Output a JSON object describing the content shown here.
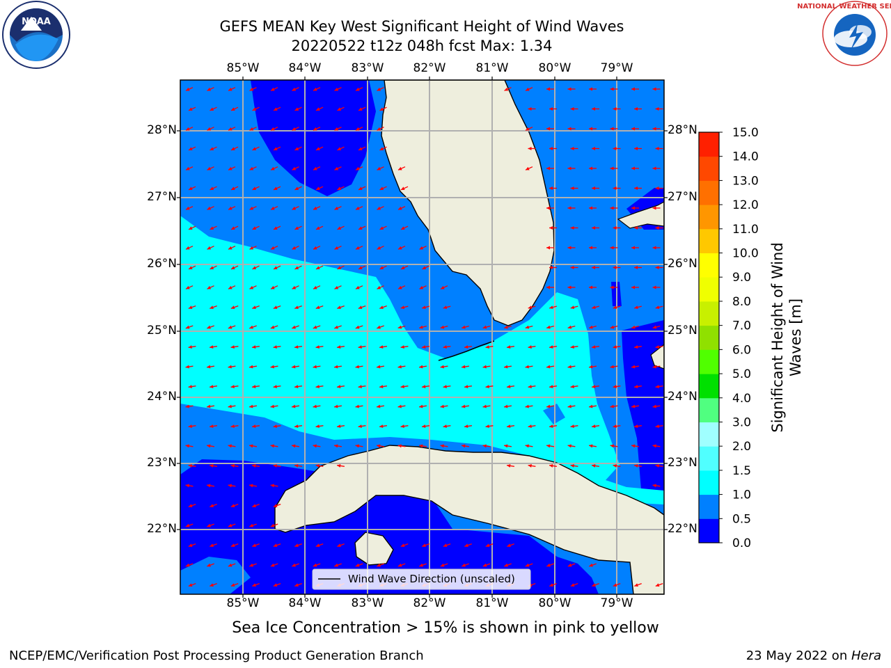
{
  "title": {
    "line1": "GEFS MEAN Key West Significant Height of Wind Waves",
    "line2": "20220522 t12z 048h fcst   Max: 1.34"
  },
  "axes": {
    "lon_labels": [
      "85°W",
      "84°W",
      "83°W",
      "82°W",
      "81°W",
      "80°W",
      "79°W"
    ],
    "lat_labels": [
      "28°N",
      "27°N",
      "26°N",
      "25°N",
      "24°N",
      "23°N",
      "22°N"
    ]
  },
  "legend": {
    "label": "Wind Wave Direction (unscaled)"
  },
  "colorbar": {
    "label_line1": "Significant Height of Wind",
    "label_line2": "Waves [m]",
    "ticks": [
      "0.0",
      "0.5",
      "1.0",
      "1.5",
      "2.0",
      "3.0",
      "4.0",
      "5.0",
      "6.0",
      "7.0",
      "8.0",
      "9.0",
      "10.0",
      "11.0",
      "12.0",
      "13.0",
      "14.0",
      "15.0"
    ],
    "colors": [
      "#0000ff",
      "#0080ff",
      "#00ffff",
      "#50ffff",
      "#a0ffff",
      "#50ff80",
      "#00e000",
      "#50ff00",
      "#90e000",
      "#c8f000",
      "#f0ff00",
      "#ffff00",
      "#ffc800",
      "#ff9600",
      "#ff7000",
      "#ff4800",
      "#ff2000"
    ]
  },
  "notes": {
    "sea_ice": "Sea Ice Concentration > 15% is shown in pink to yellow"
  },
  "footer": {
    "left": "NCEP/EMC/Verification Post Processing Product Generation Branch",
    "right_prefix": "23 May 2022 on ",
    "right_host": "Hera"
  },
  "logos": {
    "noaa": "NOAA",
    "nws": "NATIONAL WEATHER SERVICE"
  },
  "colors": {
    "land": "#eeeedd",
    "arrow": "#ff0000",
    "grid": "#b0b0b0"
  },
  "chart_data": {
    "type": "heatmap",
    "lon_range": [
      -86,
      -78.3
    ],
    "lat_range": [
      21,
      28.8
    ],
    "max": 1.34,
    "units": "m"
  }
}
